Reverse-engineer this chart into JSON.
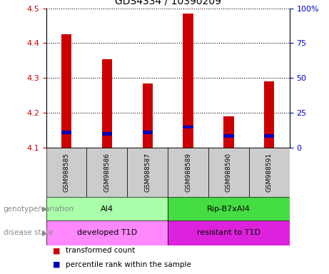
{
  "title": "GDS4334 / 10390209",
  "samples": [
    "GSM988585",
    "GSM988586",
    "GSM988587",
    "GSM988589",
    "GSM988590",
    "GSM988591"
  ],
  "red_values": [
    4.425,
    4.355,
    4.285,
    4.485,
    4.19,
    4.29
  ],
  "blue_values": [
    4.145,
    4.14,
    4.145,
    4.16,
    4.135,
    4.135
  ],
  "ymin": 4.1,
  "ymax": 4.5,
  "y_ticks": [
    4.1,
    4.2,
    4.3,
    4.4,
    4.5
  ],
  "y2_ticks": [
    0,
    25,
    50,
    75,
    100
  ],
  "y2_tick_labels": [
    "0",
    "25",
    "50",
    "75",
    "100%"
  ],
  "left_color": "#cc0000",
  "right_color": "#0000cc",
  "blue_bar_color": "#0000bb",
  "red_bar_color": "#cc0000",
  "genotype_groups": [
    {
      "label": "AI4",
      "start": 0,
      "end": 3,
      "color": "#aaffaa"
    },
    {
      "label": "Rip-B7xAI4",
      "start": 3,
      "end": 6,
      "color": "#44dd44"
    }
  ],
  "disease_groups": [
    {
      "label": "developed T1D",
      "start": 0,
      "end": 3,
      "color": "#ff88ff"
    },
    {
      "label": "resistant to T1D",
      "start": 3,
      "end": 6,
      "color": "#dd22dd"
    }
  ],
  "genotype_label": "genotype/variation",
  "disease_label": "disease state",
  "legend_red": "transformed count",
  "legend_blue": "percentile rank within the sample",
  "bar_width": 0.25,
  "background_color": "#ffffff",
  "sample_bg": "#cccccc"
}
